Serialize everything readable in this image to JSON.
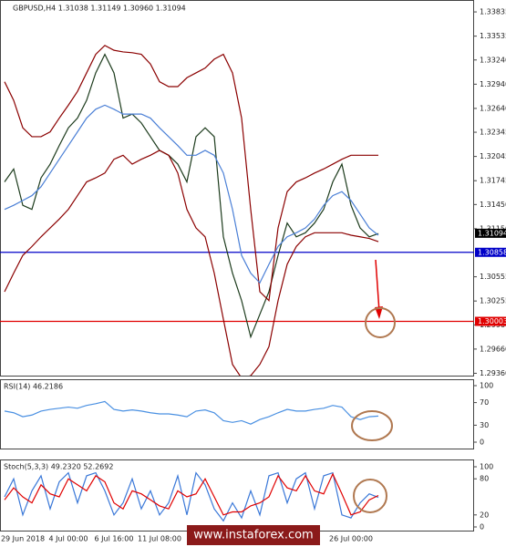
{
  "chart_data": [
    {
      "type": "line",
      "title": "GBPUSD,H4  1.31038 1.31149 1.30960 1.31094",
      "categories": [
        null,
        null,
        "29 Jun 2018",
        null,
        null,
        null,
        null,
        "4 Jul 00:00",
        null,
        null,
        null,
        null,
        "6 Jul 16:00",
        null,
        null,
        null,
        null,
        "11 Jul 08:00",
        null,
        null,
        null,
        null,
        null,
        null,
        null,
        null,
        null,
        null,
        null,
        null,
        null,
        null,
        null,
        null,
        null,
        null,
        null,
        null,
        "26 Jul 00:00",
        null,
        null,
        null
      ],
      "series": [
        {
          "color": "#1c3b1c",
          "values": [
            1.3173,
            1.3189,
            1.3144,
            1.3139,
            1.3178,
            1.3195,
            1.3218,
            1.324,
            1.3252,
            1.3274,
            1.3308,
            1.3331,
            1.3308,
            1.3252,
            1.3257,
            1.3246,
            1.3229,
            1.3212,
            1.3206,
            1.3195,
            1.3173,
            1.3229,
            1.324,
            1.3229,
            1.3105,
            1.306,
            1.3026,
            1.2981,
            1.3009,
            1.3037,
            1.3082,
            1.3122,
            1.3105,
            1.311,
            1.3122,
            1.3139,
            1.3173,
            1.3195,
            1.3144,
            1.3116,
            1.3105,
            1.3109
          ]
        },
        {
          "color": "#8b0000",
          "values": [
            1.3297,
            1.3274,
            1.324,
            1.3229,
            1.3229,
            1.3235,
            1.3252,
            1.3268,
            1.3285,
            1.3308,
            1.3331,
            1.3342,
            1.3336,
            1.3334,
            1.3333,
            1.3331,
            1.3319,
            1.3297,
            1.3291,
            1.3291,
            1.3302,
            1.3308,
            1.3314,
            1.3325,
            1.3331,
            1.3308,
            1.3252,
            1.3139,
            1.3037,
            1.3026,
            1.3116,
            1.3161,
            1.3173,
            1.3178,
            1.3184,
            1.3189,
            1.3195,
            1.3201,
            1.3206,
            1.3206,
            1.3206,
            1.3206
          ]
        },
        {
          "color": "#8b0000",
          "values": [
            1.3037,
            1.306,
            1.3082,
            1.3093,
            1.3105,
            1.3116,
            1.3127,
            1.3139,
            1.3156,
            1.3173,
            1.3178,
            1.3184,
            1.3201,
            1.3206,
            1.3195,
            1.3201,
            1.3206,
            1.3212,
            1.3206,
            1.3184,
            1.3139,
            1.3116,
            1.3105,
            1.306,
            1.3003,
            1.2947,
            1.293,
            1.2933,
            1.2947,
            1.2969,
            1.3026,
            1.3071,
            1.3093,
            1.3105,
            1.311,
            1.311,
            1.311,
            1.311,
            1.3107,
            1.3105,
            1.3103,
            1.3099
          ]
        },
        {
          "color": "#4a7fd6",
          "values": [
            1.3139,
            1.3144,
            1.315,
            1.3156,
            1.3167,
            1.3184,
            1.3201,
            1.3218,
            1.3235,
            1.3252,
            1.3263,
            1.3268,
            1.3263,
            1.3257,
            1.3257,
            1.3257,
            1.3252,
            1.324,
            1.3229,
            1.3218,
            1.3206,
            1.3206,
            1.3212,
            1.3206,
            1.3184,
            1.3139,
            1.3082,
            1.306,
            1.3048,
            1.3071,
            1.3093,
            1.3105,
            1.311,
            1.3116,
            1.3127,
            1.3144,
            1.3156,
            1.3161,
            1.315,
            1.3133,
            1.3116,
            1.3107
          ]
        }
      ],
      "ylim": [
        1.2932,
        1.3396
      ],
      "yticks": [
        1.33835,
        1.33535,
        {
          "value": 1.3324,
          "label": "1.33240"
        },
        {
          "value": 1.3294,
          "label": "1.32940"
        },
        {
          "value": 1.3264,
          "label": "1.32640"
        },
        1.32345,
        1.32045,
        1.31745,
        {
          "value": 1.3145,
          "label": "1.31450"
        },
        {
          "value": 1.3115,
          "label": "1.31150"
        },
        1.30555,
        1.30255,
        {
          "value": 1.2996,
          "label": "1.29960"
        },
        {
          "value": 1.2966,
          "label": "1.29660"
        },
        {
          "value": 1.2936,
          "label": "1.29360"
        }
      ],
      "hlines": [
        {
          "value": 1.30858,
          "color": "#0000c8"
        },
        {
          "value": 1.30003,
          "color": "#e00000"
        }
      ],
      "last_price": 1.31094
    },
    {
      "type": "line",
      "title": "RSI(14) 46.2186",
      "series": [
        {
          "color": "#4a90e2",
          "values": [
            55,
            52,
            45,
            48,
            55,
            58,
            60,
            62,
            60,
            65,
            68,
            72,
            58,
            55,
            57,
            55,
            52,
            50,
            50,
            48,
            45,
            55,
            57,
            52,
            38,
            35,
            38,
            32,
            40,
            45,
            52,
            58,
            55,
            55,
            58,
            60,
            65,
            62,
            45,
            40,
            45,
            46.2
          ]
        }
      ],
      "ylim": [
        0,
        100
      ],
      "yticks": [
        100,
        70,
        30,
        0
      ]
    },
    {
      "type": "line",
      "title": "Stoch(5,3,3) 49.2320 52.2692",
      "series": [
        {
          "color": "#3a78d8",
          "values": [
            50,
            80,
            20,
            60,
            85,
            30,
            75,
            90,
            40,
            85,
            90,
            60,
            20,
            40,
            80,
            30,
            60,
            20,
            40,
            85,
            20,
            90,
            70,
            30,
            10,
            40,
            15,
            60,
            20,
            85,
            90,
            40,
            80,
            90,
            30,
            85,
            90,
            20,
            15,
            40,
            55,
            49.2
          ]
        },
        {
          "color": "#e00000",
          "values": [
            45,
            65,
            50,
            40,
            70,
            55,
            50,
            80,
            70,
            60,
            85,
            75,
            40,
            30,
            60,
            55,
            45,
            35,
            30,
            60,
            50,
            55,
            80,
            50,
            20,
            25,
            25,
            35,
            40,
            50,
            85,
            65,
            60,
            85,
            60,
            55,
            88,
            55,
            20,
            25,
            45,
            52.3
          ]
        }
      ],
      "ylim": [
        0,
        100
      ],
      "yticks": [
        100,
        80,
        20,
        0
      ]
    }
  ],
  "watermark": "www.instaforex.com"
}
